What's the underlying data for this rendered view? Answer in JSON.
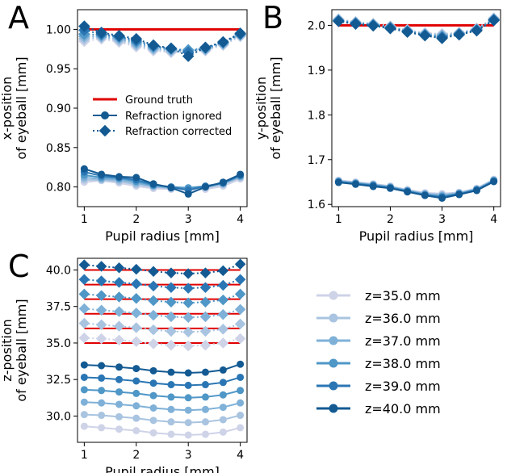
{
  "colors": {
    "ground_truth": "#e00000",
    "shades": [
      "#cfd3e8",
      "#a9c4e0",
      "#7fb1d8",
      "#4f97c7",
      "#2a76b4",
      "#135a93"
    ]
  },
  "chart_data": [
    {
      "panel": "A",
      "type": "line",
      "xlabel": "Pupil radius [mm]",
      "ylabel_line1": "x-position",
      "ylabel_line2": "of eyeball [mm]",
      "xlim": [
        0.87,
        4.13
      ],
      "ylim": [
        0.775,
        1.025
      ],
      "xticks": [
        1,
        2,
        3,
        4
      ],
      "xtick_labels": [
        "1",
        "2",
        "3",
        "4"
      ],
      "yticks": [
        0.8,
        0.85,
        0.9,
        0.95,
        1.0
      ],
      "ytick_labels": [
        "0.80",
        "0.85",
        "0.90",
        "0.95",
        "1.00"
      ],
      "x": [
        1.0,
        1.33,
        1.67,
        2.0,
        2.33,
        2.67,
        3.0,
        3.33,
        3.67,
        4.0
      ],
      "ground_truth": [
        1.0,
        1.0
      ],
      "ignored": [
        [
          0.806,
          0.808,
          0.805,
          0.801,
          0.798,
          0.797,
          0.796,
          0.797,
          0.801,
          0.81
        ],
        [
          0.809,
          0.809,
          0.807,
          0.803,
          0.8,
          0.798,
          0.797,
          0.799,
          0.803,
          0.812
        ],
        [
          0.812,
          0.81,
          0.809,
          0.805,
          0.801,
          0.799,
          0.798,
          0.8,
          0.804,
          0.813
        ],
        [
          0.815,
          0.812,
          0.811,
          0.807,
          0.802,
          0.8,
          0.799,
          0.801,
          0.805,
          0.814
        ],
        [
          0.819,
          0.814,
          0.812,
          0.809,
          0.803,
          0.8,
          0.796,
          0.801,
          0.805,
          0.815
        ],
        [
          0.823,
          0.816,
          0.813,
          0.812,
          0.804,
          0.799,
          0.791,
          0.8,
          0.806,
          0.816
        ]
      ],
      "corrected": [
        [
          0.985,
          0.988,
          0.984,
          0.978,
          0.973,
          0.971,
          0.971,
          0.973,
          0.98,
          0.991
        ],
        [
          0.988,
          0.99,
          0.986,
          0.98,
          0.975,
          0.972,
          0.972,
          0.974,
          0.981,
          0.992
        ],
        [
          0.991,
          0.991,
          0.988,
          0.982,
          0.976,
          0.974,
          0.973,
          0.975,
          0.982,
          0.993
        ],
        [
          0.994,
          0.993,
          0.99,
          0.984,
          0.978,
          0.975,
          0.974,
          0.976,
          0.983,
          0.994
        ],
        [
          0.999,
          0.994,
          0.991,
          0.986,
          0.979,
          0.976,
          0.971,
          0.977,
          0.984,
          0.994
        ],
        [
          1.004,
          0.996,
          0.992,
          0.988,
          0.98,
          0.976,
          0.966,
          0.977,
          0.984,
          0.995
        ]
      ],
      "legend": {
        "ground_truth": "Ground truth",
        "ignored": "Refraction ignored",
        "corrected": "Refraction corrected"
      }
    },
    {
      "panel": "B",
      "type": "line",
      "xlabel": "Pupil radius [mm]",
      "ylabel_line1": "y-position",
      "ylabel_line2": "of eyeball [mm]",
      "xlim": [
        0.87,
        4.13
      ],
      "ylim": [
        1.595,
        2.035
      ],
      "xticks": [
        1,
        2,
        3,
        4
      ],
      "xtick_labels": [
        "1",
        "2",
        "3",
        "4"
      ],
      "yticks": [
        1.6,
        1.7,
        1.8,
        1.9,
        2.0
      ],
      "ytick_labels": [
        "1.6",
        "1.7",
        "1.8",
        "1.9",
        "2.0"
      ],
      "x": [
        1.0,
        1.33,
        1.67,
        2.0,
        2.33,
        2.67,
        3.0,
        3.33,
        3.67,
        4.0
      ],
      "ground_truth": [
        2.0,
        2.0
      ],
      "ignored": [
        [
          1.654,
          1.65,
          1.646,
          1.641,
          1.633,
          1.626,
          1.624,
          1.627,
          1.636,
          1.656
        ],
        [
          1.653,
          1.649,
          1.645,
          1.64,
          1.632,
          1.625,
          1.622,
          1.626,
          1.635,
          1.655
        ],
        [
          1.652,
          1.648,
          1.644,
          1.639,
          1.631,
          1.623,
          1.62,
          1.625,
          1.634,
          1.654
        ],
        [
          1.651,
          1.647,
          1.643,
          1.638,
          1.63,
          1.622,
          1.618,
          1.624,
          1.633,
          1.653
        ],
        [
          1.65,
          1.646,
          1.642,
          1.637,
          1.629,
          1.621,
          1.616,
          1.623,
          1.632,
          1.652
        ],
        [
          1.649,
          1.645,
          1.64,
          1.636,
          1.628,
          1.62,
          1.614,
          1.622,
          1.631,
          1.651
        ]
      ],
      "corrected": [
        [
          2.014,
          2.008,
          2.004,
          1.998,
          1.99,
          1.983,
          1.981,
          1.984,
          1.993,
          2.016
        ],
        [
          2.013,
          2.007,
          2.003,
          1.997,
          1.989,
          1.982,
          1.979,
          1.983,
          1.992,
          2.015
        ],
        [
          2.012,
          2.006,
          2.002,
          1.996,
          1.988,
          1.98,
          1.977,
          1.982,
          1.991,
          2.014
        ],
        [
          2.011,
          2.005,
          2.001,
          1.995,
          1.987,
          1.979,
          1.975,
          1.981,
          1.99,
          2.013
        ],
        [
          2.01,
          2.004,
          2.0,
          1.994,
          1.986,
          1.978,
          1.973,
          1.98,
          1.989,
          2.012
        ],
        [
          2.009,
          2.003,
          1.999,
          1.993,
          1.985,
          1.977,
          1.971,
          1.979,
          1.988,
          2.011
        ]
      ]
    },
    {
      "panel": "C",
      "type": "line",
      "xlabel": "Pupil radius [mm]",
      "ylabel_line1": "z-position",
      "ylabel_line2": "of eyeball [mm]",
      "xlim": [
        0.87,
        4.13
      ],
      "ylim": [
        28.2,
        40.8
      ],
      "xticks": [
        1,
        2,
        3,
        4
      ],
      "xtick_labels": [
        "1",
        "2",
        "3",
        "4"
      ],
      "yticks": [
        30.0,
        32.5,
        35.0,
        37.5,
        40.0
      ],
      "ytick_labels": [
        "30.0",
        "32.5",
        "35.0",
        "37.5",
        "40.0"
      ],
      "x": [
        1.0,
        1.33,
        1.67,
        2.0,
        2.33,
        2.67,
        3.0,
        3.33,
        3.67,
        4.0
      ],
      "ground_truth_levels": [
        35.0,
        36.0,
        37.0,
        38.0,
        39.0,
        40.0
      ],
      "ignored": [
        [
          29.3,
          29.2,
          29.1,
          29.0,
          28.85,
          28.75,
          28.7,
          28.75,
          28.9,
          29.2
        ],
        [
          30.1,
          30.05,
          29.95,
          29.85,
          29.7,
          29.6,
          29.55,
          29.6,
          29.75,
          30.05
        ],
        [
          30.95,
          30.9,
          30.8,
          30.7,
          30.55,
          30.45,
          30.4,
          30.45,
          30.6,
          30.9
        ],
        [
          31.8,
          31.75,
          31.65,
          31.55,
          31.4,
          31.3,
          31.25,
          31.3,
          31.45,
          31.75
        ],
        [
          32.65,
          32.6,
          32.5,
          32.4,
          32.25,
          32.15,
          32.1,
          32.15,
          32.3,
          32.65
        ],
        [
          33.5,
          33.45,
          33.35,
          33.25,
          33.1,
          33.0,
          32.95,
          33.0,
          33.15,
          33.55
        ]
      ],
      "corrected": [
        [
          35.35,
          35.3,
          35.2,
          35.1,
          34.95,
          34.85,
          34.8,
          34.85,
          35.0,
          35.3
        ],
        [
          36.35,
          36.25,
          36.15,
          36.05,
          35.9,
          35.8,
          35.75,
          35.8,
          35.95,
          36.3
        ],
        [
          37.35,
          37.25,
          37.15,
          37.05,
          36.9,
          36.8,
          36.75,
          36.8,
          36.95,
          37.3
        ],
        [
          38.35,
          38.25,
          38.15,
          38.05,
          37.9,
          37.8,
          37.75,
          37.8,
          37.95,
          38.35
        ],
        [
          39.35,
          39.25,
          39.15,
          39.05,
          38.9,
          38.8,
          38.75,
          38.8,
          38.95,
          39.35
        ],
        [
          40.35,
          40.25,
          40.15,
          40.05,
          39.9,
          39.8,
          39.75,
          39.8,
          39.95,
          40.4
        ]
      ]
    }
  ],
  "z_legend": [
    "z=35.0 mm",
    "z=36.0 mm",
    "z=37.0 mm",
    "z=38.0 mm",
    "z=39.0 mm",
    "z=40.0 mm"
  ]
}
